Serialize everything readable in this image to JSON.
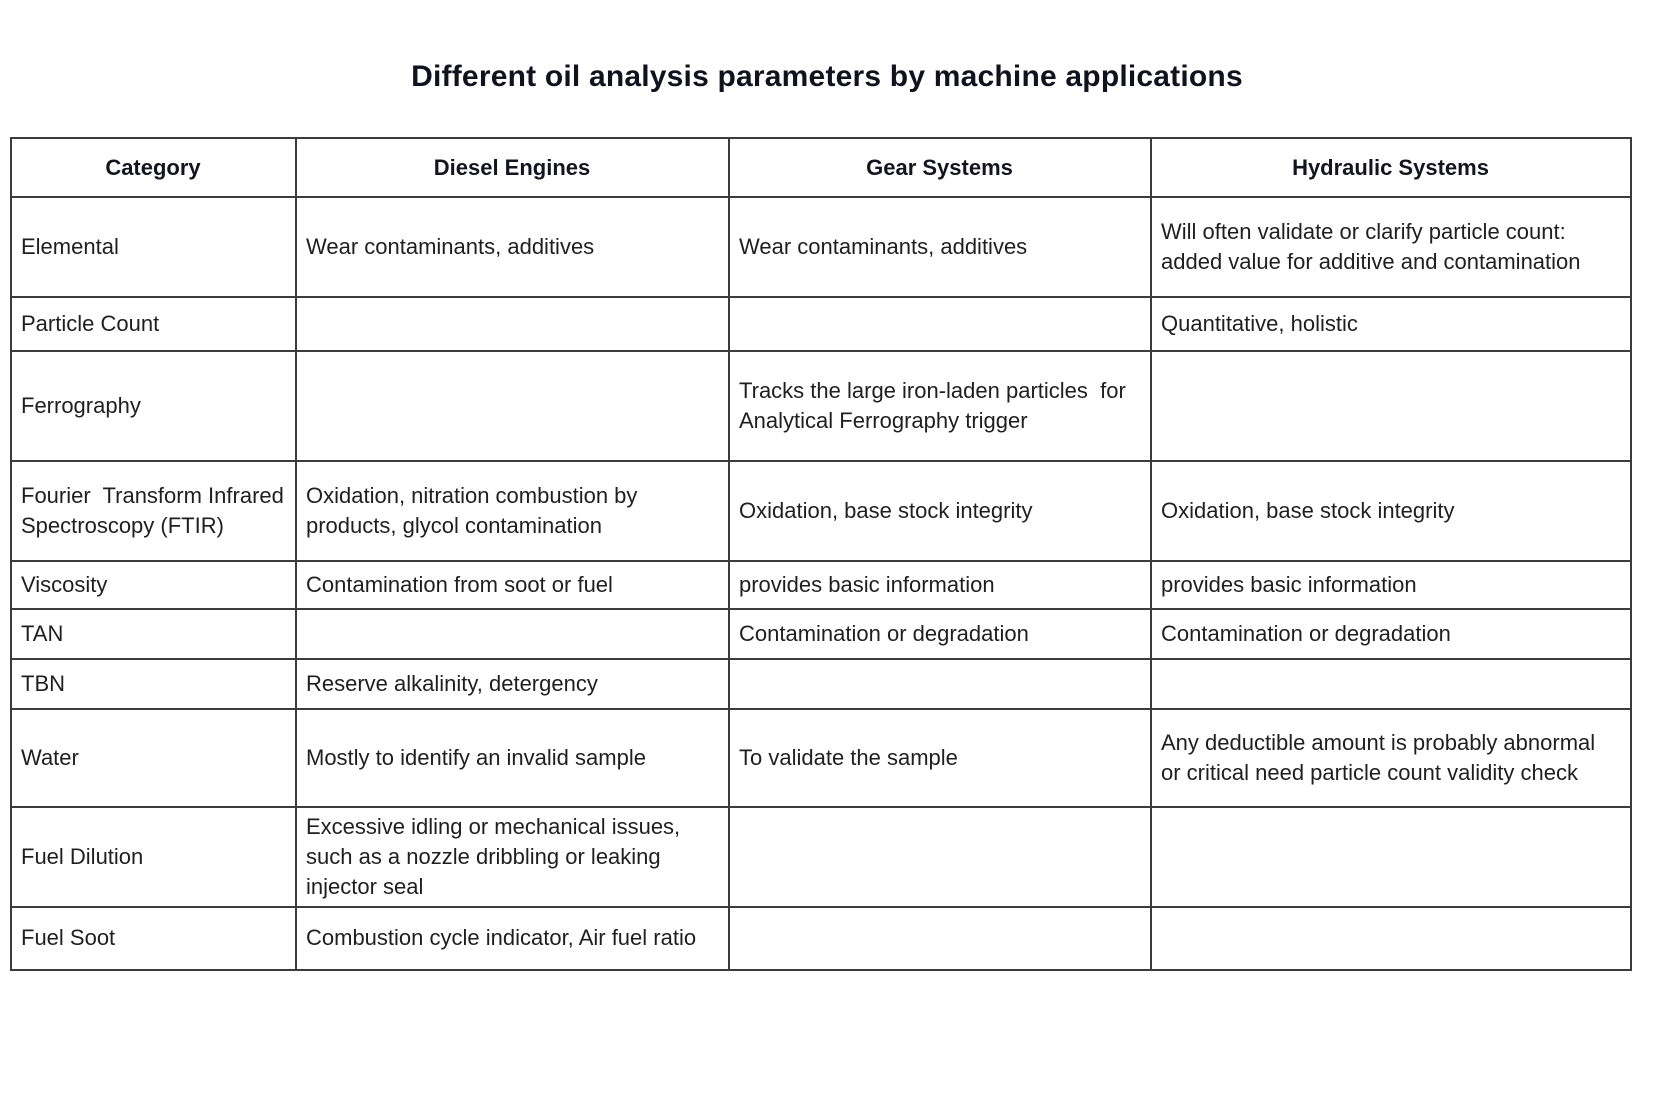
{
  "title": "Different oil analysis parameters by machine applications",
  "colors": {
    "title": "#12121e",
    "body_text": "#1f1f1f",
    "table_border": "#3b3b3b",
    "background": "#ffffff"
  },
  "table": {
    "columns": [
      "Category",
      "Diesel Engines",
      "Gear Systems",
      "Hydraulic Systems"
    ],
    "rows": [
      {
        "category": "Elemental",
        "diesel": "Wear contaminants, additives",
        "gear": "Wear contaminants, additives",
        "hydraulic": "Will often validate or clarify particle count: added value for additive and contamination"
      },
      {
        "category": "Particle Count",
        "diesel": "",
        "gear": "",
        "hydraulic": "Quantitative, holistic"
      },
      {
        "category": "Ferrography",
        "diesel": "",
        "gear": "Tracks the large iron-laden particles  for Analytical Ferrography trigger",
        "hydraulic": ""
      },
      {
        "category": "Fourier  Transform Infrared Spectroscopy (FTIR)",
        "diesel": "Oxidation, nitration combustion by  products, glycol contamination",
        "gear": "Oxidation, base stock integrity",
        "hydraulic": "Oxidation, base stock integrity"
      },
      {
        "category": "Viscosity",
        "diesel": "Contamination from soot or fuel",
        "gear": "provides basic information",
        "hydraulic": "provides basic information"
      },
      {
        "category": "TAN",
        "diesel": "",
        "gear": "Contamination or degradation",
        "hydraulic": "Contamination or degradation"
      },
      {
        "category": "TBN",
        "diesel": "Reserve alkalinity, detergency",
        "gear": "",
        "hydraulic": ""
      },
      {
        "category": "Water",
        "diesel": "Mostly to identify an invalid sample",
        "gear": "To validate the sample",
        "hydraulic": "Any deductible amount is probably abnormal or critical need particle count validity check"
      },
      {
        "category": "Fuel Dilution",
        "diesel": "Excessive idling or mechanical issues, such as a nozzle dribbling or leaking  injector seal",
        "gear": "",
        "hydraulic": ""
      },
      {
        "category": "Fuel Soot",
        "diesel": "Combustion cycle indicator, Air fuel ratio",
        "gear": "",
        "hydraulic": ""
      }
    ]
  }
}
